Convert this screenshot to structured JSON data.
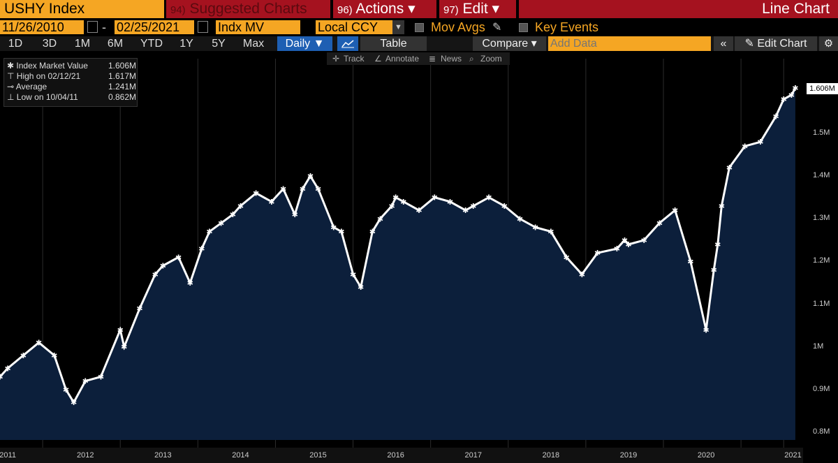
{
  "header": {
    "ticker": "USHY Index",
    "suggested": {
      "num": "94)",
      "label": "Suggested Charts"
    },
    "actions": {
      "num": "96)",
      "label": "Actions ▾"
    },
    "edit": {
      "num": "97)",
      "label": "Edit ▾"
    },
    "view_title": "Line Chart"
  },
  "controls": {
    "start_date": "11/26/2010",
    "end_date": "02/25/2021",
    "separator": "-",
    "field": "Indx MV",
    "currency": "Local CCY",
    "mov_avgs": "Mov Avgs",
    "key_events": "Key Events"
  },
  "toolbar": {
    "ranges": [
      "1D",
      "3D",
      "1M",
      "6M",
      "YTD",
      "1Y",
      "5Y",
      "Max"
    ],
    "frequency": "Daily ▼",
    "table": "Table",
    "compare": "Compare ▾",
    "add_data_placeholder": "Add Data",
    "collapse": "«",
    "edit_chart": "✎ Edit Chart",
    "gear": "⚙"
  },
  "subtools": {
    "track": "Track",
    "annotate": "Annotate",
    "news": "News",
    "zoom": "Zoom"
  },
  "legend": {
    "rows": [
      {
        "label": "Index Market Value",
        "value": "1.606M"
      },
      {
        "label": "High on 02/12/21",
        "value": "1.617M"
      },
      {
        "label": "Average",
        "value": "1.241M"
      },
      {
        "label": "Low on 10/04/11",
        "value": "0.862M"
      }
    ]
  },
  "last_value": "1.606M",
  "colors": {
    "accent": "#f5a623",
    "tab_red": "#a5121f",
    "fill": "#0c1f3b",
    "button_blue": "#1e5fb3"
  },
  "chart_data": {
    "type": "area",
    "x_labels": [
      "2011",
      "2012",
      "2013",
      "2014",
      "2015",
      "2016",
      "2017",
      "2018",
      "2019",
      "2020",
      "2021"
    ],
    "y_ticks": [
      "0.8M",
      "0.9M",
      "1M",
      "1.1M",
      "1.2M",
      "1.3M",
      "1.4M",
      "1.5M"
    ],
    "ylim": [
      0.8,
      1.66
    ],
    "x": [
      2010.9,
      2011.0,
      2011.2,
      2011.4,
      2011.6,
      2011.75,
      2011.85,
      2012.0,
      2012.2,
      2012.45,
      2012.5,
      2012.7,
      2012.9,
      2013.0,
      2013.2,
      2013.35,
      2013.5,
      2013.6,
      2013.75,
      2013.9,
      2014.0,
      2014.2,
      2014.4,
      2014.55,
      2014.7,
      2014.8,
      2014.9,
      2015.0,
      2015.2,
      2015.3,
      2015.45,
      2015.55,
      2015.7,
      2015.8,
      2015.95,
      2016.0,
      2016.1,
      2016.3,
      2016.5,
      2016.7,
      2016.9,
      2017.0,
      2017.2,
      2017.4,
      2017.6,
      2017.8,
      2018.0,
      2018.2,
      2018.4,
      2018.6,
      2018.85,
      2018.95,
      2019.0,
      2019.2,
      2019.4,
      2019.6,
      2019.8,
      2020.0,
      2020.1,
      2020.15,
      2020.2,
      2020.3,
      2020.5,
      2020.7,
      2020.9,
      2021.0,
      2021.1,
      2021.15
    ],
    "values": [
      0.93,
      0.95,
      0.98,
      1.01,
      0.98,
      0.9,
      0.87,
      0.92,
      0.93,
      1.04,
      1.0,
      1.09,
      1.17,
      1.19,
      1.21,
      1.15,
      1.23,
      1.27,
      1.29,
      1.31,
      1.33,
      1.36,
      1.34,
      1.37,
      1.31,
      1.37,
      1.4,
      1.37,
      1.28,
      1.27,
      1.17,
      1.14,
      1.27,
      1.3,
      1.33,
      1.35,
      1.34,
      1.32,
      1.35,
      1.34,
      1.32,
      1.33,
      1.35,
      1.33,
      1.3,
      1.28,
      1.27,
      1.21,
      1.17,
      1.22,
      1.23,
      1.25,
      1.24,
      1.25,
      1.29,
      1.32,
      1.2,
      1.04,
      1.18,
      1.24,
      1.33,
      1.42,
      1.47,
      1.48,
      1.54,
      1.58,
      1.59,
      1.606
    ]
  }
}
